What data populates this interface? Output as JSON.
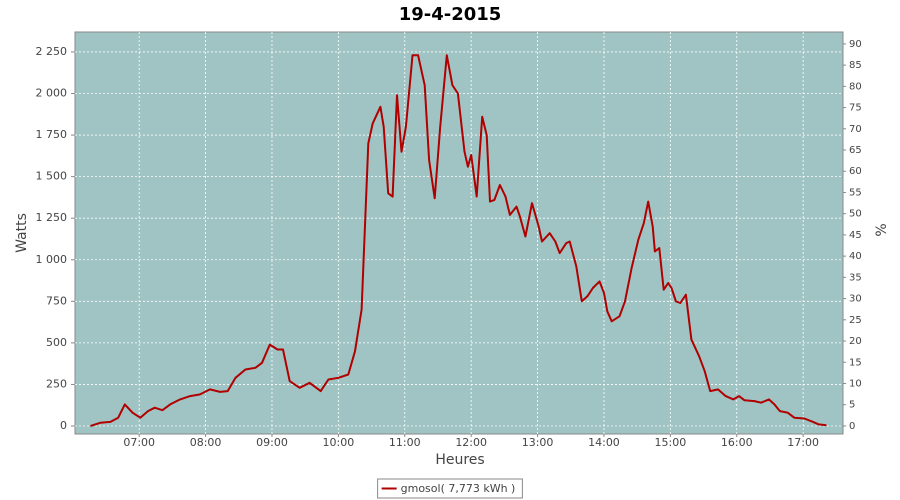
{
  "chart_data": {
    "type": "line",
    "title": "19-4-2015",
    "x_label": "Heures",
    "y_label": "Watts",
    "y2_label": "%",
    "x": [
      "06:16",
      "06:25",
      "06:34",
      "06:41",
      "06:47",
      "06:54",
      "07:01",
      "07:08",
      "07:14",
      "07:21",
      "07:28",
      "07:37",
      "07:46",
      "07:55",
      "08:04",
      "08:13",
      "08:20",
      "08:27",
      "08:36",
      "08:45",
      "08:51",
      "08:58",
      "09:05",
      "09:10",
      "09:16",
      "09:25",
      "09:34",
      "09:44",
      "09:51",
      "10:00",
      "10:09",
      "10:15",
      "10:21",
      "10:27",
      "10:31",
      "10:38",
      "10:41",
      "10:45",
      "10:49",
      "10:53",
      "10:57",
      "11:01",
      "11:07",
      "11:12",
      "11:18",
      "11:22",
      "11:27",
      "11:32",
      "11:38",
      "11:43",
      "11:48",
      "11:54",
      "11:57",
      "12:00",
      "12:05",
      "12:10",
      "12:14",
      "12:17",
      "12:21",
      "12:26",
      "12:31",
      "12:35",
      "12:41",
      "12:44",
      "12:49",
      "12:55",
      "13:01",
      "13:04",
      "13:11",
      "13:16",
      "13:20",
      "13:26",
      "13:29",
      "13:35",
      "13:40",
      "13:45",
      "13:50",
      "13:56",
      "14:00",
      "14:03",
      "14:07",
      "14:14",
      "14:19",
      "14:25",
      "14:31",
      "14:36",
      "14:40",
      "14:44",
      "14:46",
      "14:50",
      "14:54",
      "14:58",
      "15:01",
      "15:05",
      "15:09",
      "15:14",
      "15:19",
      "15:26",
      "15:31",
      "15:36",
      "15:43",
      "15:50",
      "15:57",
      "16:02",
      "16:07",
      "16:16",
      "16:22",
      "16:29",
      "16:34",
      "16:39",
      "16:46",
      "16:52",
      "17:01",
      "17:09",
      "17:14",
      "17:21"
    ],
    "series": [
      {
        "name": "gmosol( 7,773 kWh )",
        "color": "#b00000",
        "values": [
          0,
          20,
          25,
          50,
          130,
          80,
          50,
          90,
          110,
          95,
          130,
          160,
          180,
          190,
          220,
          205,
          210,
          290,
          340,
          350,
          380,
          490,
          460,
          460,
          270,
          230,
          260,
          210,
          280,
          290,
          310,
          450,
          700,
          1700,
          1820,
          1920,
          1800,
          1400,
          1380,
          1990,
          1650,
          1800,
          2230,
          2230,
          2050,
          1600,
          1370,
          1800,
          2230,
          2050,
          2000,
          1650,
          1560,
          1630,
          1380,
          1860,
          1750,
          1350,
          1360,
          1450,
          1380,
          1270,
          1320,
          1260,
          1140,
          1340,
          1200,
          1110,
          1160,
          1110,
          1040,
          1100,
          1110,
          960,
          750,
          780,
          830,
          870,
          800,
          690,
          630,
          660,
          750,
          950,
          1120,
          1220,
          1350,
          1200,
          1050,
          1070,
          820,
          860,
          830,
          750,
          740,
          790,
          520,
          420,
          330,
          210,
          220,
          180,
          160,
          180,
          155,
          150,
          140,
          160,
          130,
          90,
          80,
          50,
          45,
          25,
          10,
          5
        ]
      }
    ],
    "xlim": [
      "06:02",
      "17:36"
    ],
    "xticks": [
      "07:00",
      "08:00",
      "09:00",
      "10:00",
      "11:00",
      "12:00",
      "13:00",
      "14:00",
      "15:00",
      "16:00",
      "17:00"
    ],
    "ylim": [
      -48,
      2370
    ],
    "yticks": [
      0,
      250,
      500,
      750,
      {
        "value": 1000,
        "label": "1 000"
      },
      {
        "value": 1250,
        "label": "1 250"
      },
      {
        "value": 1500,
        "label": "1 500"
      },
      {
        "value": 1750,
        "label": "1 750"
      },
      {
        "value": 2000,
        "label": "2 000"
      },
      {
        "value": 2250,
        "label": "2 250"
      }
    ],
    "y2lim": [
      -1.9,
      92.8
    ],
    "y2ticks": [
      0,
      5,
      10,
      15,
      20,
      25,
      30,
      35,
      40,
      45,
      50,
      55,
      60,
      65,
      70,
      75,
      80,
      85,
      90
    ],
    "grid": true,
    "legend": "bottom",
    "background": "#a0c4c4"
  }
}
